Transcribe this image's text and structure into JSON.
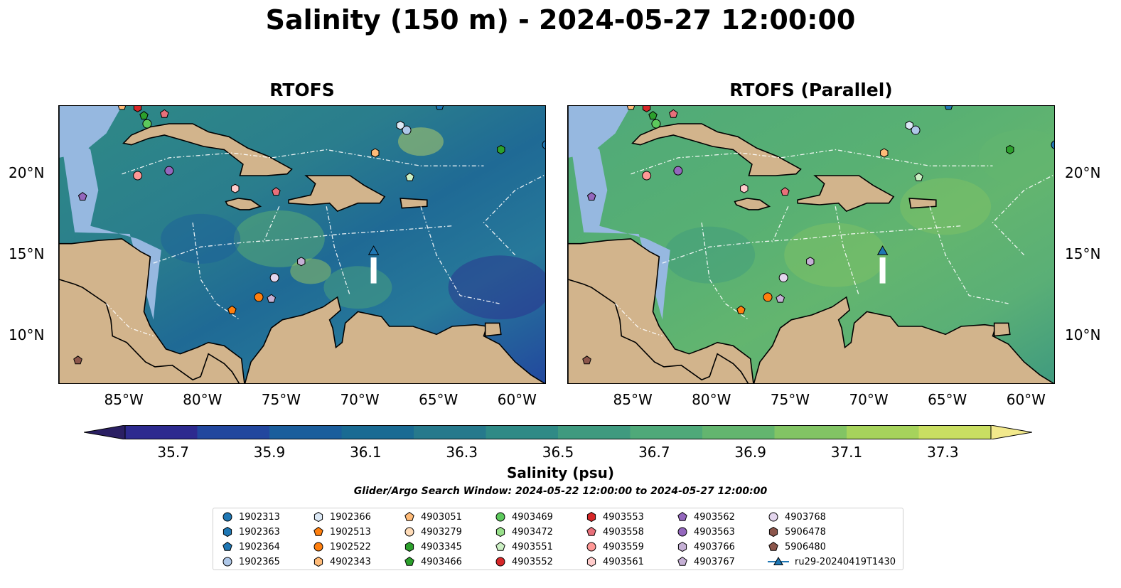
{
  "title": "Salinity (150 m) - 2024-05-27 12:00:00",
  "panels": [
    {
      "title": "RTOFS"
    },
    {
      "title": "RTOFS (Parallel)"
    }
  ],
  "axes": {
    "lon_ticks": [
      "85°W",
      "80°W",
      "75°W",
      "70°W",
      "65°W",
      "60°W"
    ],
    "lat_ticks": [
      "20°N",
      "15°N",
      "10°N"
    ],
    "lon_range": [
      -89,
      -58
    ],
    "lat_range": [
      7,
      24.2
    ]
  },
  "colorbar": {
    "label": "Salinity (psu)",
    "range": [
      35.6,
      37.4
    ],
    "ticks": [
      "35.7",
      "35.9",
      "36.1",
      "36.3",
      "36.5",
      "36.7",
      "36.9",
      "37.1",
      "37.3"
    ],
    "colors": [
      "#2a1f63",
      "#2d2a8f",
      "#22479e",
      "#1b5e9c",
      "#1a6b93",
      "#26798c",
      "#2f8a86",
      "#3f9a7f",
      "#4fa979",
      "#63b56f",
      "#82c464",
      "#a6d35c",
      "#c9de62",
      "#f2e98c"
    ]
  },
  "search_window": "Glider/Argo Search Window: 2024-05-22 12:00:00 to 2024-05-27 12:00:00",
  "legend": [
    {
      "id": "1902313",
      "color": "#1f77b4",
      "marker": "circle"
    },
    {
      "id": "1902363",
      "color": "#1f77b4",
      "marker": "hexagon"
    },
    {
      "id": "1902364",
      "color": "#1f77b4",
      "marker": "pentagon"
    },
    {
      "id": "1902365",
      "color": "#aec7e8",
      "marker": "circle"
    },
    {
      "id": "1902366",
      "color": "#dbe8f5",
      "marker": "hexagon"
    },
    {
      "id": "1902513",
      "color": "#ff7f0e",
      "marker": "pentagon"
    },
    {
      "id": "1902522",
      "color": "#ff7f0e",
      "marker": "circle"
    },
    {
      "id": "4902343",
      "color": "#ffbb78",
      "marker": "hexagon"
    },
    {
      "id": "4903051",
      "color": "#ffbb78",
      "marker": "pentagon"
    },
    {
      "id": "4903279",
      "color": "#ffdcb8",
      "marker": "circle"
    },
    {
      "id": "4903345",
      "color": "#2ca02c",
      "marker": "hexagon"
    },
    {
      "id": "4903466",
      "color": "#2ca02c",
      "marker": "pentagon"
    },
    {
      "id": "4903469",
      "color": "#5cc95c",
      "marker": "circle"
    },
    {
      "id": "4903472",
      "color": "#98df8a",
      "marker": "hexagon"
    },
    {
      "id": "4903551",
      "color": "#ccf0c4",
      "marker": "pentagon"
    },
    {
      "id": "4903552",
      "color": "#d62728",
      "marker": "circle"
    },
    {
      "id": "4903553",
      "color": "#d62728",
      "marker": "hexagon"
    },
    {
      "id": "4903558",
      "color": "#e8707a",
      "marker": "pentagon"
    },
    {
      "id": "4903559",
      "color": "#ff9896",
      "marker": "circle"
    },
    {
      "id": "4903561",
      "color": "#ffcccb",
      "marker": "hexagon"
    },
    {
      "id": "4903562",
      "color": "#9467bd",
      "marker": "pentagon"
    },
    {
      "id": "4903563",
      "color": "#9467bd",
      "marker": "circle"
    },
    {
      "id": "4903766",
      "color": "#c5b0d5",
      "marker": "hexagon"
    },
    {
      "id": "4903767",
      "color": "#c5b0d5",
      "marker": "pentagon"
    },
    {
      "id": "4903768",
      "color": "#e4d6ee",
      "marker": "circle"
    },
    {
      "id": "5906478",
      "color": "#8c564b",
      "marker": "hexagon"
    },
    {
      "id": "5906480",
      "color": "#8c564b",
      "marker": "pentagon"
    },
    {
      "id": "ru29-20240419T1430",
      "color": "#1f77b4",
      "marker": "triangle-line"
    }
  ],
  "floats": [
    {
      "id": "1902313",
      "lon": -58.0,
      "lat": 21.8
    },
    {
      "id": "1902364",
      "lon": -64.8,
      "lat": 24.2
    },
    {
      "id": "1902366",
      "lon": -67.3,
      "lat": 23.0
    },
    {
      "id": "1902365",
      "lon": -66.9,
      "lat": 22.7
    },
    {
      "id": "4903345",
      "lon": -60.9,
      "lat": 21.5
    },
    {
      "id": "4902343",
      "lon": -68.9,
      "lat": 21.3
    },
    {
      "id": "4903551",
      "lon": -66.7,
      "lat": 19.8
    },
    {
      "id": "4903553",
      "lon": -84.0,
      "lat": 24.1
    },
    {
      "id": "4903051",
      "lon": -85.0,
      "lat": 24.2
    },
    {
      "id": "4903466",
      "lon": -83.6,
      "lat": 23.6
    },
    {
      "id": "4903469",
      "lon": -83.4,
      "lat": 23.1
    },
    {
      "id": "4903558",
      "lon": -82.3,
      "lat": 23.7
    },
    {
      "id": "4903559",
      "lon": -84.0,
      "lat": 19.9
    },
    {
      "id": "4903563",
      "lon": -82.0,
      "lat": 20.2
    },
    {
      "id": "4903562",
      "lon": -87.5,
      "lat": 18.6
    },
    {
      "id": "4903561",
      "lon": -77.8,
      "lat": 19.1
    },
    {
      "id": "4903558",
      "lon": -75.2,
      "lat": 18.9
    },
    {
      "id": "4903766",
      "lon": -73.6,
      "lat": 14.6
    },
    {
      "id": "4903768",
      "lon": -75.3,
      "lat": 13.6
    },
    {
      "id": "1902522",
      "lon": -76.3,
      "lat": 12.4
    },
    {
      "id": "4903767",
      "lon": -75.5,
      "lat": 12.3
    },
    {
      "id": "1902513",
      "lon": -78.0,
      "lat": 11.6
    },
    {
      "id": "5906480",
      "lon": -87.8,
      "lat": 8.5
    }
  ],
  "glider": {
    "id": "ru29-20240419T1430",
    "lon": -69.0,
    "lat": 15.2,
    "track_end_lat": 13.6
  }
}
